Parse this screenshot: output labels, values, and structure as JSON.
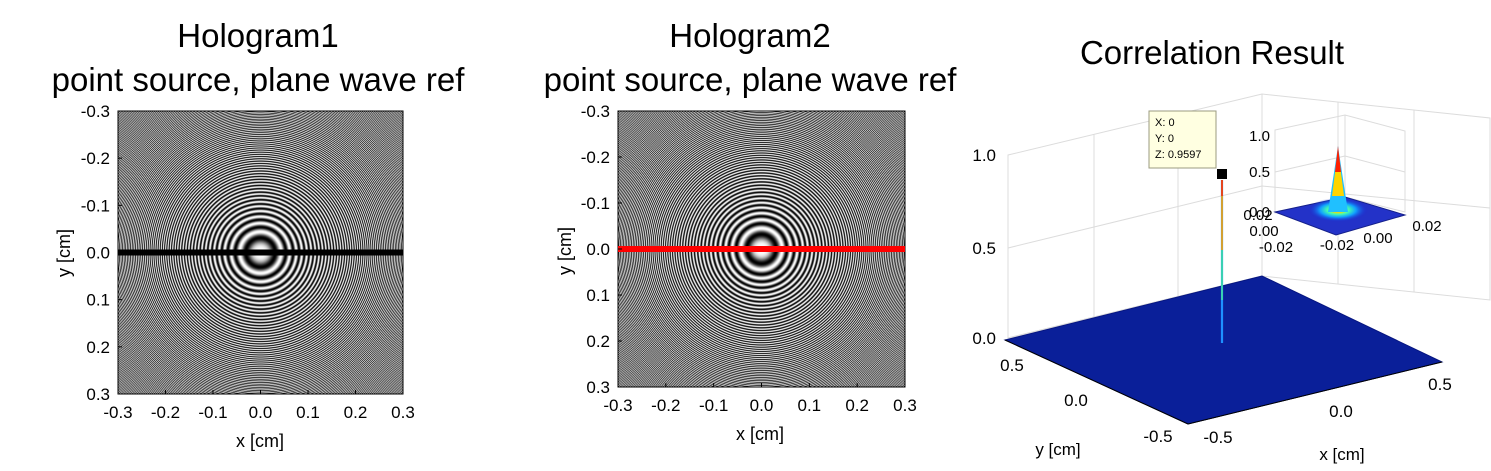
{
  "chart_data": [
    {
      "type": "heatmap",
      "title": "Hologram1",
      "subtitle": "point source, plane wave ref",
      "xlabel": "x [cm]",
      "ylabel": "y [cm]",
      "xlim": [
        -0.3,
        0.3
      ],
      "ylim": [
        -0.3,
        0.3
      ],
      "y_reversed": true,
      "xticks": [
        "-0.3",
        "-0.2",
        "-0.1",
        "0.0",
        "0.1",
        "0.2",
        "0.3"
      ],
      "yticks": [
        "-0.3",
        "-0.2",
        "-0.1",
        "0.0",
        "0.1",
        "0.2",
        "0.3"
      ],
      "colormap": "gray",
      "pattern": "concentric fringes centered at (0, 0)",
      "line": {
        "y": 0.0,
        "x_range": [
          -0.3,
          0.3
        ],
        "color": "#000000"
      }
    },
    {
      "type": "heatmap",
      "title": "Hologram2",
      "subtitle": "point source, plane wave ref",
      "xlabel": "x [cm]",
      "ylabel": "y [cm]",
      "xlim": [
        -0.3,
        0.3
      ],
      "ylim": [
        -0.3,
        0.3
      ],
      "y_reversed": true,
      "xticks": [
        "-0.3",
        "-0.2",
        "-0.1",
        "0.0",
        "0.1",
        "0.2",
        "0.3"
      ],
      "yticks": [
        "-0.3",
        "-0.2",
        "-0.1",
        "0.0",
        "0.1",
        "0.2",
        "0.3"
      ],
      "colormap": "gray",
      "pattern": "concentric fringes centered at (0, 0)",
      "line": {
        "y": 0.0,
        "x_range": [
          -0.3,
          0.3
        ],
        "color": "#ff0000"
      }
    },
    {
      "type": "surface",
      "title": "Correlation Result",
      "xlabel": "x [cm]",
      "ylabel": "y [cm]",
      "xlim": [
        -0.5,
        0.5
      ],
      "ylim": [
        -0.5,
        0.5
      ],
      "zlim": [
        0,
        1
      ],
      "xticks": [
        "-0.5",
        "0.0",
        "0.5"
      ],
      "yticks": [
        "-0.5",
        "0.0",
        "0.5"
      ],
      "zticks": [
        "0.0",
        "0.5",
        "1.0"
      ],
      "grid": true,
      "surface_color": "#0a1f99",
      "peak": {
        "x": 0,
        "y": 0,
        "z": 0.9597
      },
      "datatip": {
        "x": "X: 0",
        "y": "Y: 0",
        "z": "Z: 0.9597"
      },
      "inset": {
        "xlim": [
          -0.02,
          0.02
        ],
        "ylim": [
          -0.02,
          0.02
        ],
        "zlim": [
          0,
          1
        ],
        "xticks": [
          "-0.02",
          "0.00",
          "0.02"
        ],
        "yticks": [
          "0.02",
          "0.00",
          "-0.02"
        ],
        "zticks": [
          "0.0",
          "0.5",
          "1.0"
        ],
        "colormap": "jet"
      }
    }
  ]
}
